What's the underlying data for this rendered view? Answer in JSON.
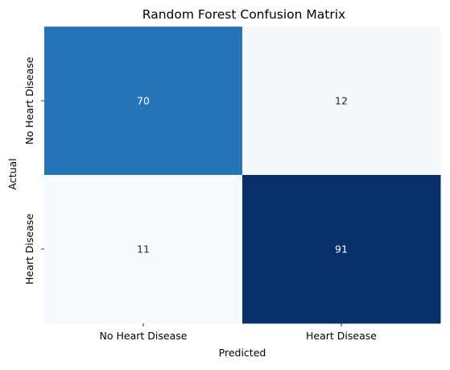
{
  "chart_data": {
    "type": "heatmap",
    "title": "Random Forest Confusion Matrix",
    "xlabel": "Predicted",
    "ylabel": "Actual",
    "x_categories": [
      "No Heart Disease",
      "Heart Disease"
    ],
    "y_categories": [
      "No Heart Disease",
      "Heart Disease"
    ],
    "values": [
      [
        70,
        12
      ],
      [
        11,
        91
      ]
    ],
    "colormap": "Blues",
    "colorbar": false,
    "annotations": true,
    "value_range": [
      11,
      91
    ],
    "colors": {
      "cell_70": "#2878bd",
      "cell_12": "#f5f9fe",
      "cell_11": "#f7fbff",
      "cell_91": "#08306b",
      "annotation_text": "#ffffff",
      "axis_text": "#000000"
    }
  }
}
